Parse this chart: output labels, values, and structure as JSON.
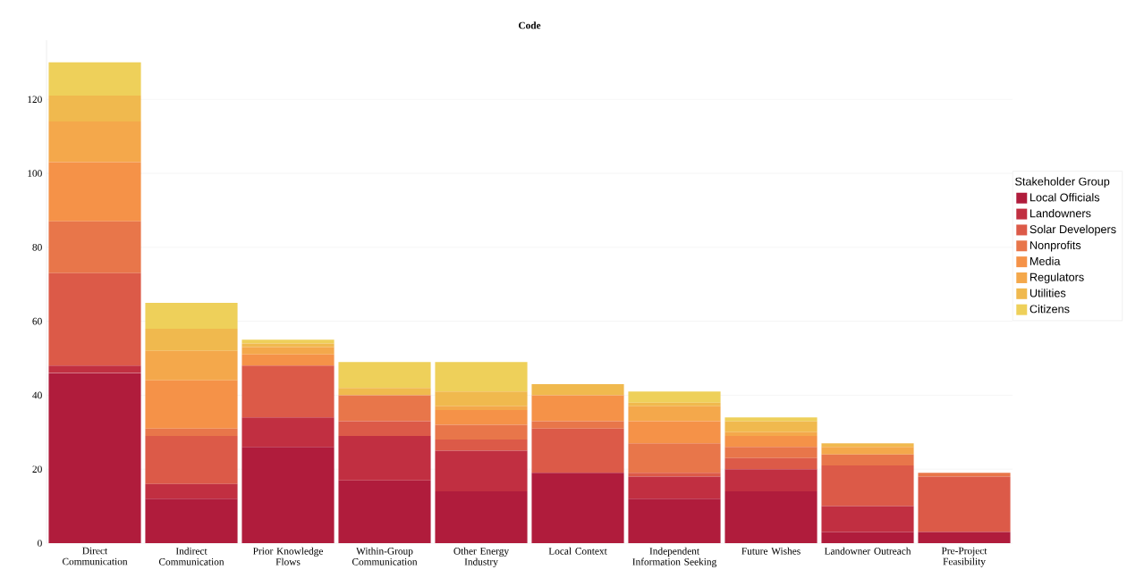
{
  "chart_data": {
    "type": "bar",
    "stacked": true,
    "title": "Code",
    "legend_title": "Stakeholder Group",
    "legend": "right",
    "grid": "y",
    "ylim": [
      0,
      136
    ],
    "categories": [
      "Direct Communication",
      "Indirect Communication",
      "Prior Knowledge Flows",
      "Within-Group Communication",
      "Other Energy Industry",
      "Local Context",
      "Independent Information Seeking",
      "Future Wishes",
      "Landowner Outreach",
      "Pre-Project Feasibility"
    ],
    "yticks": [
      0,
      20,
      40,
      60,
      80,
      100,
      120
    ],
    "series": [
      {
        "name": "Local Officials",
        "color": "#b01c3c",
        "values": [
          46,
          12,
          26,
          17,
          14,
          19,
          12,
          14,
          3,
          3
        ]
      },
      {
        "name": "Landowners",
        "color": "#c12f41",
        "values": [
          2,
          4,
          8,
          12,
          11,
          0,
          6,
          6,
          7,
          0
        ]
      },
      {
        "name": "Solar Developers",
        "color": "#dc5a48",
        "values": [
          25,
          13,
          14,
          4,
          3,
          12,
          1,
          3,
          11,
          15
        ]
      },
      {
        "name": "Nonprofits",
        "color": "#e8764a",
        "values": [
          14,
          2,
          0,
          7,
          4,
          2,
          8,
          3,
          3,
          1
        ]
      },
      {
        "name": "Media",
        "color": "#f59248",
        "values": [
          16,
          13,
          3,
          0,
          4,
          7,
          6,
          3,
          0,
          0
        ]
      },
      {
        "name": "Regulators",
        "color": "#f4a84b",
        "values": [
          11,
          8,
          2,
          0,
          1,
          0,
          4,
          1,
          2,
          0
        ]
      },
      {
        "name": "Utilities",
        "color": "#f0b94e",
        "values": [
          7,
          6,
          1,
          2,
          4,
          3,
          1,
          3,
          1,
          0
        ]
      },
      {
        "name": "Citizens",
        "color": "#eed05a",
        "values": [
          9,
          7,
          1,
          7,
          8,
          0,
          3,
          1,
          0,
          0
        ]
      }
    ]
  }
}
